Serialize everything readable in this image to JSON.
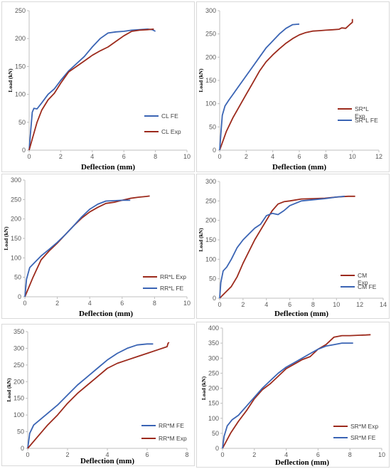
{
  "colors": {
    "fe": "#3a64b4",
    "exp": "#9c2a1c",
    "axis": "#bfbfbf",
    "tick": "#595959"
  },
  "chart_data": [
    {
      "id": "cl",
      "type": "line",
      "xlabel": "Deflection (mm)",
      "ylabel": "Load (kN)",
      "xlim": [
        0,
        10
      ],
      "ylim": [
        0,
        250
      ],
      "xticks": [
        0,
        2,
        4,
        6,
        8,
        10
      ],
      "yticks": [
        0,
        50,
        100,
        150,
        200,
        250
      ],
      "grid": false,
      "legend_position": "right",
      "series": [
        {
          "name": "CL FE",
          "color": "fe",
          "x": [
            0,
            0.1,
            0.2,
            0.3,
            0.5,
            0.8,
            1.2,
            1.6,
            2.0,
            2.5,
            3.0,
            3.5,
            4.0,
            4.5,
            5.0,
            5.5,
            6.0,
            6.5,
            7.0,
            7.5,
            7.8,
            8.0
          ],
          "y": [
            0,
            35,
            68,
            75,
            74,
            85,
            100,
            110,
            125,
            142,
            155,
            168,
            185,
            200,
            210,
            212,
            213,
            215,
            216,
            217,
            216,
            213
          ]
        },
        {
          "name": "CL Exp",
          "color": "exp",
          "x": [
            0,
            0.2,
            0.5,
            0.8,
            1.2,
            1.6,
            2.0,
            2.5,
            3.0,
            3.5,
            4.0,
            4.5,
            5.0,
            5.5,
            6.0,
            6.5,
            7.0,
            7.5,
            7.9
          ],
          "y": [
            0,
            20,
            50,
            72,
            90,
            102,
            120,
            140,
            150,
            160,
            170,
            178,
            185,
            195,
            205,
            213,
            215,
            216,
            217
          ]
        }
      ]
    },
    {
      "id": "srl",
      "type": "line",
      "xlabel": "Deflection (mm)",
      "ylabel": "Load (kN)",
      "xlim": [
        0,
        12
      ],
      "ylim": [
        0,
        300
      ],
      "xticks": [
        0,
        2,
        4,
        6,
        8,
        10,
        12
      ],
      "yticks": [
        0,
        50,
        100,
        150,
        200,
        250,
        300
      ],
      "grid": false,
      "legend_position": "right",
      "series": [
        {
          "name": "SR*L Exp",
          "color": "exp",
          "x": [
            0,
            0.5,
            1,
            1.5,
            2,
            2.5,
            3,
            3.5,
            4,
            4.5,
            5,
            5.5,
            6,
            6.5,
            7,
            7.5,
            8,
            8.5,
            9,
            9.2,
            9.5,
            9.8,
            10,
            10
          ],
          "y": [
            0,
            40,
            70,
            95,
            120,
            145,
            170,
            190,
            205,
            218,
            230,
            240,
            248,
            253,
            256,
            257,
            258,
            259,
            260,
            263,
            262,
            270,
            275,
            282
          ]
        },
        {
          "name": "SR*L FE",
          "color": "fe",
          "x": [
            0,
            0.1,
            0.2,
            0.4,
            0.7,
            1,
            1.5,
            2,
            2.5,
            3,
            3.5,
            4,
            4.5,
            5,
            5.5,
            6
          ],
          "y": [
            0,
            40,
            75,
            95,
            108,
            120,
            140,
            160,
            180,
            200,
            220,
            235,
            250,
            262,
            270,
            271
          ]
        }
      ]
    },
    {
      "id": "rrl",
      "type": "line",
      "xlabel": "Deflection (mm)",
      "ylabel": "Load (kN)",
      "xlim": [
        0,
        10
      ],
      "ylim": [
        0,
        300
      ],
      "xticks": [
        0,
        2,
        4,
        6,
        8,
        10
      ],
      "yticks": [
        0,
        50,
        100,
        150,
        200,
        250,
        300
      ],
      "grid": false,
      "legend_position": "right",
      "series": [
        {
          "name": "RR*L Exp",
          "color": "exp",
          "x": [
            0,
            0.5,
            1,
            1.5,
            2,
            2.5,
            3,
            3.5,
            4,
            4.5,
            5,
            5.5,
            6,
            6.5,
            7,
            7.5,
            7.7
          ],
          "y": [
            0,
            50,
            95,
            118,
            138,
            160,
            182,
            202,
            218,
            230,
            240,
            243,
            248,
            253,
            256,
            258,
            259
          ]
        },
        {
          "name": "RR*L FE",
          "color": "fe",
          "x": [
            0,
            0.1,
            0.3,
            0.6,
            1,
            1.5,
            2,
            2.5,
            3,
            3.5,
            4,
            4.5,
            5,
            5.5,
            6,
            6.5
          ],
          "y": [
            0,
            45,
            75,
            88,
            105,
            122,
            140,
            160,
            182,
            205,
            225,
            238,
            246,
            247,
            248,
            248
          ]
        }
      ]
    },
    {
      "id": "cm",
      "type": "line",
      "xlabel": "Deflection (mm)",
      "ylabel": "Load (kN)",
      "xlim": [
        0,
        14
      ],
      "ylim": [
        0,
        300
      ],
      "xticks": [
        0,
        2,
        4,
        6,
        8,
        10,
        12,
        14
      ],
      "yticks": [
        0,
        50,
        100,
        150,
        200,
        250,
        300
      ],
      "grid": false,
      "legend_position": "right",
      "series": [
        {
          "name": "CM Exp",
          "color": "exp",
          "x": [
            0,
            0.5,
            1,
            1.5,
            2,
            2.5,
            3,
            3.5,
            4,
            4.5,
            5,
            5.5,
            6,
            7,
            8,
            9,
            10,
            11,
            11.6
          ],
          "y": [
            0,
            15,
            30,
            55,
            90,
            120,
            150,
            175,
            200,
            225,
            242,
            248,
            250,
            255,
            256,
            257,
            260,
            262,
            262
          ]
        },
        {
          "name": "CM FE",
          "color": "fe",
          "x": [
            0,
            0.1,
            0.3,
            0.6,
            1,
            1.5,
            2,
            2.5,
            3,
            3.5,
            4,
            4.5,
            5,
            5.5,
            6,
            7,
            8,
            9,
            10,
            10.7
          ],
          "y": [
            0,
            40,
            70,
            80,
            100,
            130,
            150,
            165,
            180,
            190,
            212,
            218,
            215,
            225,
            238,
            250,
            253,
            256,
            260,
            262
          ]
        }
      ]
    },
    {
      "id": "rrm",
      "type": "line",
      "xlabel": "Deflection (mm)",
      "ylabel": "Load (kN)",
      "xlim": [
        0,
        8
      ],
      "ylim": [
        0,
        350
      ],
      "xticks": [
        0,
        2,
        4,
        6,
        8
      ],
      "yticks": [
        0,
        50,
        100,
        150,
        200,
        250,
        300,
        350
      ],
      "grid": false,
      "legend_position": "right",
      "series": [
        {
          "name": "RR*M FE",
          "color": "fe",
          "x": [
            0,
            0.1,
            0.3,
            0.6,
            1,
            1.5,
            2,
            2.5,
            3,
            3.5,
            4,
            4.5,
            5,
            5.5,
            6,
            6.3
          ],
          "y": [
            0,
            45,
            70,
            85,
            105,
            130,
            160,
            190,
            215,
            240,
            265,
            285,
            300,
            310,
            313,
            313
          ]
        },
        {
          "name": "RR*M Exp",
          "color": "exp",
          "x": [
            0,
            0.5,
            1,
            1.5,
            2,
            2.5,
            3,
            3.5,
            4,
            4.5,
            5,
            5.5,
            6,
            6.5,
            7,
            7.05,
            7.1
          ],
          "y": [
            0,
            35,
            70,
            100,
            135,
            165,
            190,
            215,
            240,
            255,
            265,
            275,
            285,
            295,
            305,
            315,
            318
          ]
        }
      ]
    },
    {
      "id": "srm",
      "type": "line",
      "xlabel": "Deflection (mm)",
      "ylabel": "Load (kN)",
      "xlim": [
        0,
        10
      ],
      "ylim": [
        0,
        400
      ],
      "xticks": [
        0,
        2,
        4,
        6,
        8,
        10
      ],
      "yticks": [
        0,
        50,
        100,
        150,
        200,
        250,
        300,
        350,
        400
      ],
      "grid": false,
      "legend_position": "bottom-right",
      "series": [
        {
          "name": "SR*M Exp",
          "color": "exp",
          "x": [
            0,
            0.5,
            1,
            1.5,
            2,
            2.5,
            3,
            3.5,
            4,
            4.5,
            5,
            5.5,
            6,
            6.5,
            7,
            7.5,
            8,
            8.5,
            9,
            9.3
          ],
          "y": [
            0,
            50,
            90,
            125,
            165,
            195,
            215,
            240,
            265,
            280,
            295,
            305,
            330,
            345,
            370,
            375,
            375,
            376,
            377,
            378
          ]
        },
        {
          "name": "SR*M FE",
          "color": "fe",
          "x": [
            0,
            0.1,
            0.3,
            0.6,
            1,
            1.5,
            2,
            2.5,
            3,
            3.5,
            4,
            4.5,
            5,
            5.5,
            6,
            6.5,
            7,
            7.5,
            8,
            8.2
          ],
          "y": [
            0,
            40,
            75,
            95,
            110,
            140,
            170,
            200,
            225,
            250,
            270,
            285,
            300,
            315,
            330,
            340,
            345,
            350,
            350,
            350
          ]
        }
      ]
    }
  ]
}
